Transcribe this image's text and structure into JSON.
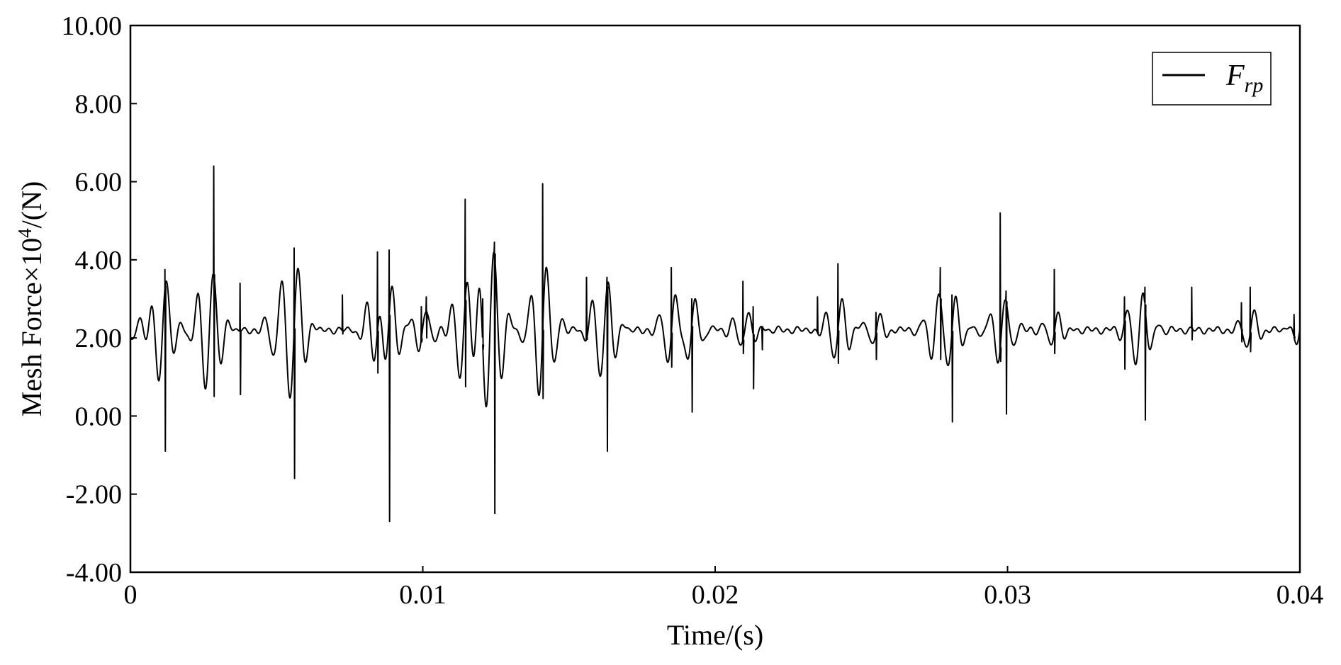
{
  "chart_data": {
    "type": "line",
    "title": "",
    "xlabel": "Time/(s)",
    "ylabel": {
      "main": "Mesh Force×10",
      "sup": "4",
      "tail": "/(N)"
    },
    "xlim": [
      0,
      0.04
    ],
    "ylim": [
      -4,
      10
    ],
    "x_ticks": [
      0,
      0.01,
      0.02,
      0.03,
      0.04
    ],
    "x_tick_labels": [
      "0",
      "0.01",
      "0.02",
      "0.03",
      "0.04"
    ],
    "y_ticks": [
      -4,
      -2,
      0,
      2,
      4,
      6,
      8,
      10
    ],
    "y_tick_labels": [
      "-4.00",
      "-2.00",
      "0.00",
      "2.00",
      "4.00",
      "6.00",
      "8.00",
      "10.00"
    ],
    "grid": false,
    "legend": {
      "placement": "top-right",
      "entries": [
        {
          "main": "F",
          "sub": "rp"
        }
      ]
    },
    "series": [
      {
        "color": "#000000",
        "baseline": 2.2,
        "oscillation_bursts": [
          {
            "t": 0.0002,
            "amp": 0.35,
            "dur": 0.0008
          },
          {
            "t": 0.0011,
            "amp": 1.5,
            "dur": 0.0008
          },
          {
            "t": 0.0027,
            "amp": 1.6,
            "dur": 0.001
          },
          {
            "t": 0.005,
            "amp": 0.6,
            "dur": 0.0009
          },
          {
            "t": 0.0056,
            "amp": 1.7,
            "dur": 0.0009
          },
          {
            "t": 0.0085,
            "amp": 1.4,
            "dur": 0.001
          },
          {
            "t": 0.0088,
            "amp": 2.0,
            "dur": 0.0008
          },
          {
            "t": 0.01,
            "amp": 0.5,
            "dur": 0.001
          },
          {
            "t": 0.0114,
            "amp": 1.4,
            "dur": 0.0009
          },
          {
            "t": 0.0123,
            "amp": 2.2,
            "dur": 0.001
          },
          {
            "t": 0.0141,
            "amp": 1.7,
            "dur": 0.001
          },
          {
            "t": 0.0162,
            "amp": 1.3,
            "dur": 0.001
          },
          {
            "t": 0.0185,
            "amp": 0.9,
            "dur": 0.0009
          },
          {
            "t": 0.0192,
            "amp": 0.8,
            "dur": 0.0008
          },
          {
            "t": 0.021,
            "amp": 0.5,
            "dur": 0.001
          },
          {
            "t": 0.0242,
            "amp": 0.8,
            "dur": 0.001
          },
          {
            "t": 0.0255,
            "amp": 0.4,
            "dur": 0.0008
          },
          {
            "t": 0.0275,
            "amp": 0.7,
            "dur": 0.0008
          },
          {
            "t": 0.0281,
            "amp": 0.9,
            "dur": 0.0009
          },
          {
            "t": 0.0298,
            "amp": 0.8,
            "dur": 0.001
          },
          {
            "t": 0.0316,
            "amp": 0.5,
            "dur": 0.0008
          },
          {
            "t": 0.0345,
            "amp": 1.0,
            "dur": 0.001
          },
          {
            "t": 0.0383,
            "amp": 0.5,
            "dur": 0.0008
          },
          {
            "t": 0.04,
            "amp": 0.4,
            "dur": 0.0008
          }
        ],
        "spikes": [
          {
            "t": 0.00118,
            "max": 3.75,
            "min": -0.9
          },
          {
            "t": 0.00285,
            "max": 6.4,
            "min": 0.5
          },
          {
            "t": 0.00375,
            "max": 3.4,
            "min": 0.55
          },
          {
            "t": 0.0056,
            "max": 4.3,
            "min": -1.6
          },
          {
            "t": 0.00725,
            "max": 3.1,
            "min": 2.1
          },
          {
            "t": 0.00845,
            "max": 4.2,
            "min": 1.1
          },
          {
            "t": 0.00885,
            "max": 4.25,
            "min": -2.7
          },
          {
            "t": 0.00995,
            "max": 2.8,
            "min": 1.9
          },
          {
            "t": 0.01012,
            "max": 3.05,
            "min": 2.0
          },
          {
            "t": 0.01145,
            "max": 5.55,
            "min": 0.75
          },
          {
            "t": 0.01205,
            "max": 3.0,
            "min": 1.7
          },
          {
            "t": 0.01245,
            "max": 4.45,
            "min": -2.5
          },
          {
            "t": 0.0141,
            "max": 5.95,
            "min": 0.45
          },
          {
            "t": 0.0156,
            "max": 3.55,
            "min": 2.1
          },
          {
            "t": 0.0163,
            "max": 3.55,
            "min": -0.9
          },
          {
            "t": 0.0185,
            "max": 3.8,
            "min": 1.25
          },
          {
            "t": 0.0192,
            "max": 3.0,
            "min": 0.1
          },
          {
            "t": 0.02095,
            "max": 3.45,
            "min": 1.6
          },
          {
            "t": 0.0213,
            "max": 2.8,
            "min": 0.7
          },
          {
            "t": 0.0216,
            "max": 2.2,
            "min": 1.7
          },
          {
            "t": 0.0235,
            "max": 3.05,
            "min": 2.1
          },
          {
            "t": 0.0242,
            "max": 3.9,
            "min": 1.35
          },
          {
            "t": 0.0255,
            "max": 2.65,
            "min": 1.45
          },
          {
            "t": 0.0277,
            "max": 3.8,
            "min": 1.45
          },
          {
            "t": 0.0281,
            "max": 3.1,
            "min": -0.15
          },
          {
            "t": 0.02975,
            "max": 5.2,
            "min": 1.4
          },
          {
            "t": 0.02995,
            "max": 3.2,
            "min": 0.05
          },
          {
            "t": 0.0316,
            "max": 3.75,
            "min": 1.6
          },
          {
            "t": 0.034,
            "max": 3.05,
            "min": 1.2
          },
          {
            "t": 0.0347,
            "max": 3.3,
            "min": -0.1
          },
          {
            "t": 0.0363,
            "max": 3.3,
            "min": 1.95
          },
          {
            "t": 0.038,
            "max": 2.9,
            "min": 1.9
          },
          {
            "t": 0.0383,
            "max": 3.3,
            "min": 1.65
          },
          {
            "t": 0.0398,
            "max": 2.6,
            "min": 1.95
          }
        ]
      }
    ]
  }
}
